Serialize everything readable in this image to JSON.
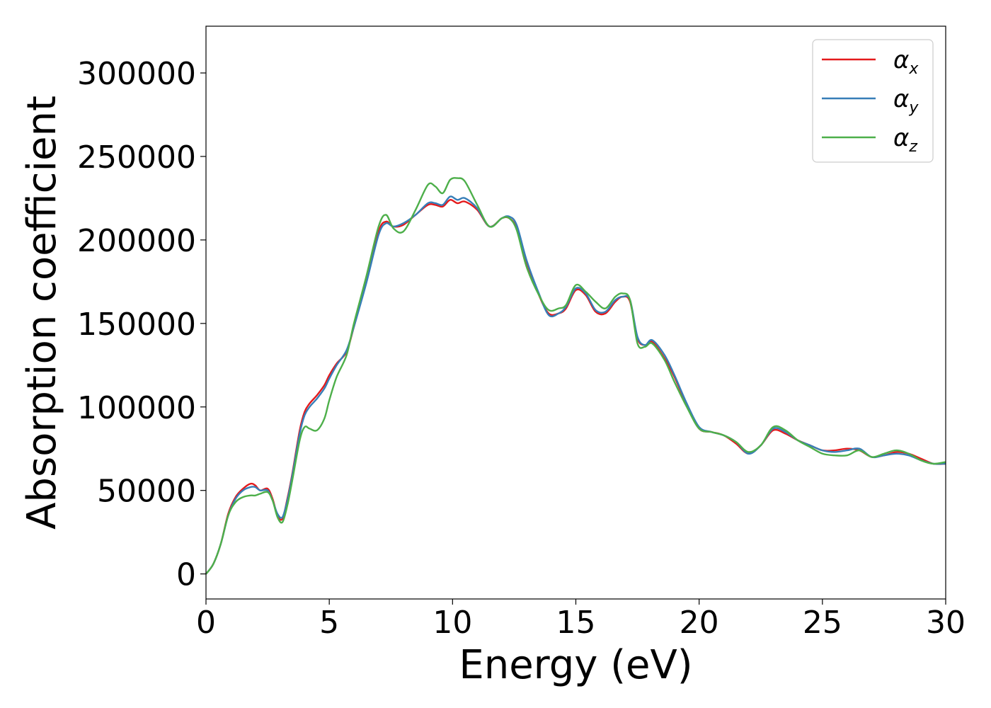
{
  "chart_data": {
    "type": "line",
    "title": "",
    "xlabel": "Energy (eV)",
    "ylabel": "Absorption coefficient",
    "xlim": [
      0,
      30
    ],
    "ylim": [
      -15000,
      328000
    ],
    "xticks": [
      0,
      5,
      10,
      15,
      20,
      25,
      30
    ],
    "yticks": [
      0,
      50000,
      100000,
      150000,
      200000,
      250000,
      300000
    ],
    "xtick_labels": [
      "0",
      "5",
      "10",
      "15",
      "20",
      "25",
      "30"
    ],
    "ytick_labels": [
      "0",
      "50000",
      "100000",
      "150000",
      "200000",
      "250000",
      "300000"
    ],
    "grid": false,
    "legend_position": "top-right",
    "series": [
      {
        "name": "α_x",
        "label_main": "α",
        "label_sub": "x",
        "color": "#e41a1c",
        "x": [
          0,
          0.3,
          0.6,
          0.9,
          1.2,
          1.5,
          1.8,
          2.0,
          2.2,
          2.5,
          2.7,
          2.9,
          3.1,
          3.3,
          3.5,
          3.8,
          4.0,
          4.2,
          4.5,
          4.8,
          5.0,
          5.3,
          5.7,
          6.0,
          6.5,
          7.0,
          7.3,
          7.6,
          8.0,
          8.5,
          9.0,
          9.3,
          9.6,
          9.9,
          10.2,
          10.5,
          11.0,
          11.5,
          12.0,
          12.3,
          12.6,
          13.0,
          13.5,
          13.9,
          14.3,
          14.6,
          15.0,
          15.4,
          15.8,
          16.2,
          16.6,
          16.9,
          17.2,
          17.5,
          17.8,
          18.1,
          18.6,
          19.0,
          19.5,
          20.0,
          20.5,
          21.0,
          21.5,
          22.0,
          22.5,
          23.0,
          23.5,
          24.0,
          24.5,
          25.0,
          25.5,
          26.0,
          26.5,
          27.0,
          27.5,
          28.0,
          28.5,
          29.0,
          29.5,
          30.0
        ],
        "values": [
          0,
          6000,
          18000,
          36000,
          46000,
          51000,
          54000,
          53000,
          50000,
          51000,
          45000,
          35000,
          33000,
          45000,
          60000,
          86000,
          97000,
          102000,
          107000,
          113000,
          119000,
          126000,
          133000,
          148000,
          175000,
          205000,
          211000,
          208000,
          209000,
          215000,
          221000,
          221000,
          220000,
          224000,
          222000,
          223000,
          218000,
          208000,
          213000,
          213000,
          207000,
          187000,
          167000,
          156000,
          156000,
          159000,
          170000,
          167000,
          157000,
          156000,
          163000,
          166000,
          163000,
          141000,
          137000,
          139000,
          129000,
          118000,
          101000,
          87000,
          85000,
          83000,
          78000,
          72000,
          77000,
          86000,
          84000,
          80000,
          77000,
          74000,
          74000,
          75000,
          74000,
          70000,
          71000,
          73000,
          72000,
          69000,
          66000,
          66000
        ]
      },
      {
        "name": "α_y",
        "label_main": "α",
        "label_sub": "y",
        "color": "#377eb8",
        "x": [
          0,
          0.3,
          0.6,
          0.9,
          1.2,
          1.5,
          1.8,
          2.0,
          2.2,
          2.5,
          2.7,
          2.9,
          3.1,
          3.3,
          3.5,
          3.8,
          4.0,
          4.2,
          4.5,
          4.8,
          5.0,
          5.3,
          5.7,
          6.0,
          6.5,
          7.0,
          7.3,
          7.6,
          8.0,
          8.5,
          9.0,
          9.3,
          9.6,
          9.9,
          10.2,
          10.5,
          11.0,
          11.5,
          12.0,
          12.3,
          12.6,
          13.0,
          13.5,
          13.9,
          14.3,
          14.6,
          15.0,
          15.4,
          15.8,
          16.2,
          16.6,
          16.9,
          17.2,
          17.5,
          17.8,
          18.1,
          18.6,
          19.0,
          19.5,
          20.0,
          20.5,
          21.0,
          21.5,
          22.0,
          22.5,
          23.0,
          23.5,
          24.0,
          24.5,
          25.0,
          25.5,
          26.0,
          26.5,
          27.0,
          27.5,
          28.0,
          28.5,
          29.0,
          29.5,
          30.0
        ],
        "values": [
          0,
          6000,
          18000,
          35000,
          45000,
          50000,
          52000,
          52000,
          50000,
          50000,
          44000,
          36000,
          34000,
          44000,
          59000,
          84000,
          95000,
          100000,
          105000,
          111000,
          117000,
          125000,
          134000,
          148000,
          174000,
          203000,
          210000,
          208000,
          210000,
          215000,
          222000,
          222000,
          221000,
          226000,
          224000,
          225000,
          219000,
          208000,
          213000,
          214000,
          209000,
          188000,
          168000,
          155000,
          156000,
          160000,
          171000,
          168000,
          158000,
          157000,
          164000,
          166000,
          164000,
          142000,
          137000,
          140000,
          131000,
          119000,
          102000,
          88000,
          85000,
          83000,
          79000,
          72000,
          77000,
          87000,
          85000,
          80000,
          77000,
          74000,
          73000,
          74000,
          75000,
          70000,
          71000,
          72000,
          71000,
          68000,
          66000,
          66000
        ]
      },
      {
        "name": "α_z",
        "label_main": "α",
        "label_sub": "z",
        "color": "#4daf4a",
        "x": [
          0,
          0.3,
          0.6,
          0.9,
          1.2,
          1.5,
          1.8,
          2.0,
          2.2,
          2.5,
          2.7,
          2.9,
          3.1,
          3.3,
          3.5,
          3.8,
          4.0,
          4.2,
          4.5,
          4.8,
          5.0,
          5.3,
          5.7,
          6.0,
          6.5,
          7.0,
          7.3,
          7.6,
          8.0,
          8.5,
          9.0,
          9.3,
          9.6,
          9.9,
          10.2,
          10.5,
          11.0,
          11.5,
          12.0,
          12.3,
          12.6,
          13.0,
          13.5,
          13.9,
          14.3,
          14.6,
          15.0,
          15.4,
          15.8,
          16.2,
          16.6,
          16.9,
          17.2,
          17.5,
          17.8,
          18.1,
          18.6,
          19.0,
          19.5,
          20.0,
          20.5,
          21.0,
          21.5,
          22.0,
          22.5,
          23.0,
          23.5,
          24.0,
          24.5,
          25.0,
          25.5,
          26.0,
          26.5,
          27.0,
          27.5,
          28.0,
          28.5,
          29.0,
          29.5,
          30.0
        ],
        "values": [
          0,
          6000,
          18000,
          35000,
          43000,
          46000,
          47000,
          47000,
          48000,
          49000,
          44000,
          34000,
          31000,
          41000,
          56000,
          80000,
          88000,
          87000,
          86000,
          93000,
          104000,
          118000,
          131000,
          150000,
          178000,
          208000,
          215000,
          207000,
          205000,
          218000,
          233000,
          232000,
          228000,
          236000,
          237000,
          235000,
          221000,
          208000,
          213000,
          213000,
          206000,
          184000,
          167000,
          158000,
          159000,
          161000,
          173000,
          169000,
          163000,
          159000,
          166000,
          168000,
          164000,
          138000,
          136000,
          138000,
          128000,
          115000,
          100000,
          87000,
          85000,
          83000,
          79000,
          73000,
          77000,
          88000,
          86000,
          80000,
          76000,
          72000,
          71000,
          71000,
          74000,
          70000,
          72000,
          74000,
          72000,
          68000,
          66000,
          67000
        ]
      }
    ]
  }
}
